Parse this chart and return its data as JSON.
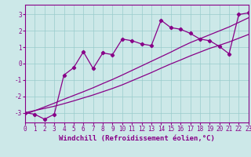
{
  "xlabel": "Windchill (Refroidissement éolien,°C)",
  "bg_color": "#cce8e8",
  "line_color": "#880088",
  "x_data": [
    0,
    1,
    2,
    3,
    4,
    5,
    6,
    7,
    8,
    9,
    10,
    11,
    12,
    13,
    14,
    15,
    16,
    17,
    18,
    19,
    20,
    21,
    22,
    23
  ],
  "y_zigzag": [
    -3.0,
    -3.1,
    -3.4,
    -3.1,
    -0.7,
    -0.25,
    0.72,
    -0.3,
    0.65,
    0.55,
    1.5,
    1.4,
    1.2,
    1.1,
    2.65,
    2.2,
    2.1,
    1.85,
    1.5,
    1.4,
    1.05,
    0.6,
    3.0,
    3.1
  ],
  "y_line1": [
    -3.0,
    -2.87,
    -2.74,
    -2.61,
    -2.45,
    -2.28,
    -2.1,
    -1.92,
    -1.72,
    -1.52,
    -1.3,
    -1.05,
    -0.8,
    -0.55,
    -0.28,
    -0.02,
    0.22,
    0.47,
    0.7,
    0.93,
    1.12,
    1.32,
    1.55,
    1.78
  ],
  "y_line2": [
    -3.1,
    -2.88,
    -2.65,
    -2.42,
    -2.18,
    -1.95,
    -1.72,
    -1.48,
    -1.22,
    -0.97,
    -0.7,
    -0.42,
    -0.14,
    0.14,
    0.42,
    0.7,
    1.0,
    1.28,
    1.52,
    1.76,
    2.0,
    2.24,
    2.52,
    2.8
  ],
  "xlim": [
    0,
    23
  ],
  "ylim": [
    -3.6,
    3.6
  ],
  "yticks": [
    -3,
    -2,
    -1,
    0,
    1,
    2,
    3
  ],
  "xticks": [
    0,
    1,
    2,
    3,
    4,
    5,
    6,
    7,
    8,
    9,
    10,
    11,
    12,
    13,
    14,
    15,
    16,
    17,
    18,
    19,
    20,
    21,
    22,
    23
  ],
  "xtick_labels": [
    "0",
    "1",
    "2",
    "3",
    "4",
    "5",
    "6",
    "7",
    "8",
    "9",
    "10",
    "11",
    "12",
    "13",
    "14",
    "15",
    "16",
    "17",
    "18",
    "19",
    "20",
    "21",
    "22",
    "23"
  ],
  "grid_color": "#99cccc",
  "marker": "D",
  "marker_size": 2.2,
  "linewidth": 0.9,
  "xlabel_fontsize": 6.5,
  "tick_fontsize": 5.5
}
